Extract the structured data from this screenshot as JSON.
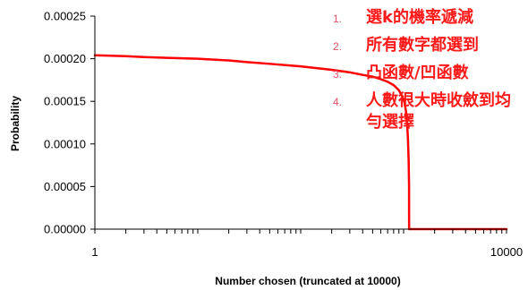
{
  "chart_data": {
    "type": "line",
    "title": "",
    "xlabel": "Number chosen (truncated at 10000)",
    "ylabel": "Probability",
    "x_scale": "log",
    "xlim": [
      1,
      10000
    ],
    "ylim": [
      0,
      0.00025
    ],
    "grid": false,
    "x_tick_labels": [
      {
        "value": 1,
        "label": "1"
      },
      {
        "value": 10000,
        "label": "10000"
      }
    ],
    "y_tick_labels": [
      {
        "value": 0,
        "label": "0.00000"
      },
      {
        "value": 5e-05,
        "label": "0.00005"
      },
      {
        "value": 0.0001,
        "label": "0.00010"
      },
      {
        "value": 0.00015,
        "label": "0.00015"
      },
      {
        "value": 0.0002,
        "label": "0.00020"
      },
      {
        "value": 0.00025,
        "label": "0.00025"
      }
    ],
    "series": [
      {
        "color": "#ff0000",
        "x": [
          1,
          2,
          3,
          5,
          10,
          20,
          30,
          50,
          100,
          200,
          300,
          400,
          500,
          600,
          700,
          800,
          900,
          950,
          1000,
          1020,
          1050,
          1080,
          1100,
          1120,
          1130,
          1131,
          2000,
          5000,
          10000
        ],
        "y": [
          0.000204,
          0.000203,
          0.000202,
          0.000201,
          0.0002,
          0.000198,
          0.000196,
          0.000194,
          0.000191,
          0.000187,
          0.000184,
          0.000181,
          0.000179,
          0.000176,
          0.000173,
          0.000169,
          0.000163,
          0.000158,
          0.000152,
          0.000148,
          0.00014,
          0.000125,
          0.000108,
          8e-05,
          5e-05,
          0,
          0,
          0,
          0
        ]
      }
    ]
  },
  "annotations": [
    {
      "number": "1.",
      "text": "選k的機率遞減"
    },
    {
      "number": "2.",
      "text": "所有數字都選到"
    },
    {
      "number": "3.",
      "text": "凸函數/凹函數"
    },
    {
      "number": "4.",
      "text": "人數很大時收斂到均勻選擇"
    }
  ]
}
